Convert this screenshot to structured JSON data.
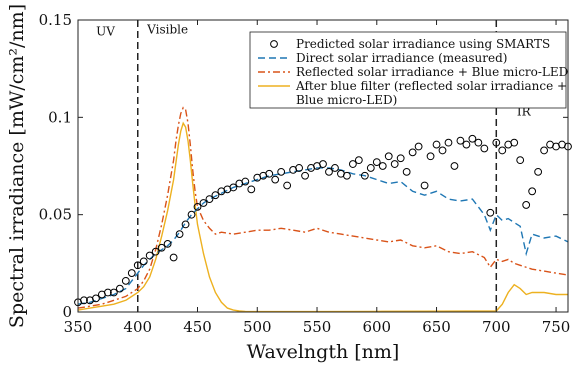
{
  "chart_data": {
    "type": "line",
    "xlabel": "Wavelngth [nm]",
    "ylabel": "Spectral irradiance [mW/cm²/nm]",
    "xlim": [
      350,
      760
    ],
    "ylim": [
      0,
      0.15
    ],
    "xticks": [
      350,
      400,
      450,
      500,
      550,
      600,
      650,
      700,
      750
    ],
    "xtick_labels": [
      "350",
      "400",
      "450",
      "500",
      "550",
      "600",
      "650",
      "700",
      "750"
    ],
    "yticks": [
      0,
      0.05,
      0.1,
      0.15
    ],
    "ytick_labels": [
      "0",
      "0.05",
      "0.1",
      "0.15"
    ],
    "grid": false,
    "legend_position": "top-right",
    "vlines": [
      400,
      700
    ],
    "region_labels": [
      {
        "text": "UV",
        "x": 373,
        "y": 0.142
      },
      {
        "text": "Visible",
        "x": 425,
        "y": 0.143
      },
      {
        "text": "IR",
        "x": 723,
        "y": 0.101
      }
    ],
    "series": [
      {
        "name": "Predicted solar irradiance using SMARTS",
        "style": "markers",
        "marker": "circle",
        "color": "#000000",
        "x": [
          350,
          355,
          360,
          365,
          370,
          375,
          380,
          385,
          390,
          395,
          400,
          405,
          410,
          415,
          420,
          425,
          430,
          435,
          440,
          445,
          450,
          455,
          460,
          465,
          470,
          475,
          480,
          485,
          490,
          495,
          500,
          505,
          510,
          515,
          520,
          525,
          530,
          535,
          540,
          545,
          550,
          555,
          560,
          565,
          570,
          575,
          580,
          585,
          590,
          595,
          600,
          605,
          610,
          615,
          620,
          625,
          630,
          635,
          640,
          645,
          650,
          655,
          660,
          665,
          670,
          675,
          680,
          685,
          690,
          695,
          700,
          705,
          710,
          715,
          720,
          725,
          730,
          735,
          740,
          745,
          750,
          755,
          760
        ],
        "y": [
          0.005,
          0.006,
          0.006,
          0.007,
          0.009,
          0.01,
          0.01,
          0.012,
          0.016,
          0.02,
          0.024,
          0.026,
          0.029,
          0.031,
          0.033,
          0.035,
          0.028,
          0.04,
          0.045,
          0.05,
          0.054,
          0.056,
          0.058,
          0.06,
          0.062,
          0.063,
          0.064,
          0.066,
          0.067,
          0.063,
          0.069,
          0.07,
          0.071,
          0.068,
          0.072,
          0.065,
          0.073,
          0.074,
          0.07,
          0.074,
          0.075,
          0.076,
          0.072,
          0.074,
          0.071,
          0.07,
          0.076,
          0.078,
          0.07,
          0.074,
          0.077,
          0.075,
          0.08,
          0.076,
          0.079,
          0.072,
          0.082,
          0.085,
          0.065,
          0.08,
          0.086,
          0.083,
          0.087,
          0.075,
          0.088,
          0.086,
          0.089,
          0.087,
          0.084,
          0.051,
          0.087,
          0.083,
          0.086,
          0.087,
          0.078,
          0.055,
          0.062,
          0.072,
          0.083,
          0.086,
          0.085,
          0.086,
          0.085
        ]
      },
      {
        "name": "Direct solar irradiance (measured)",
        "style": "dashed",
        "color": "#1f77b4",
        "x": [
          350,
          360,
          370,
          380,
          390,
          400,
          405,
          410,
          415,
          420,
          425,
          430,
          435,
          440,
          445,
          450,
          455,
          460,
          470,
          480,
          490,
          500,
          510,
          520,
          530,
          540,
          550,
          560,
          570,
          580,
          590,
          600,
          610,
          620,
          630,
          640,
          650,
          660,
          670,
          680,
          690,
          695,
          700,
          705,
          710,
          715,
          720,
          725,
          730,
          740,
          750,
          760
        ],
        "y": [
          0.004,
          0.005,
          0.007,
          0.009,
          0.012,
          0.02,
          0.024,
          0.027,
          0.03,
          0.032,
          0.034,
          0.037,
          0.041,
          0.046,
          0.05,
          0.053,
          0.056,
          0.058,
          0.061,
          0.064,
          0.066,
          0.068,
          0.07,
          0.071,
          0.072,
          0.073,
          0.074,
          0.074,
          0.073,
          0.071,
          0.07,
          0.068,
          0.066,
          0.067,
          0.062,
          0.06,
          0.062,
          0.058,
          0.057,
          0.058,
          0.05,
          0.042,
          0.05,
          0.047,
          0.048,
          0.046,
          0.044,
          0.03,
          0.04,
          0.038,
          0.039,
          0.036
        ]
      },
      {
        "name": "Reflected solar irradiance + Blue micro-LED",
        "style": "dashdot",
        "color": "#d95319",
        "x": [
          350,
          360,
          370,
          380,
          390,
          400,
          405,
          410,
          415,
          420,
          425,
          430,
          432,
          434,
          436,
          438,
          440,
          442,
          444,
          446,
          448,
          450,
          455,
          460,
          465,
          470,
          480,
          490,
          500,
          510,
          520,
          530,
          540,
          550,
          560,
          570,
          580,
          590,
          600,
          610,
          620,
          630,
          640,
          650,
          660,
          670,
          680,
          690,
          695,
          700,
          705,
          710,
          715,
          720,
          730,
          740,
          750,
          760
        ],
        "y": [
          0.002,
          0.003,
          0.004,
          0.006,
          0.008,
          0.012,
          0.016,
          0.022,
          0.032,
          0.045,
          0.06,
          0.078,
          0.088,
          0.096,
          0.102,
          0.105,
          0.104,
          0.097,
          0.086,
          0.073,
          0.062,
          0.054,
          0.047,
          0.043,
          0.04,
          0.041,
          0.04,
          0.041,
          0.042,
          0.042,
          0.043,
          0.042,
          0.041,
          0.043,
          0.041,
          0.04,
          0.039,
          0.038,
          0.037,
          0.036,
          0.037,
          0.034,
          0.033,
          0.034,
          0.031,
          0.03,
          0.031,
          0.028,
          0.023,
          0.027,
          0.026,
          0.027,
          0.025,
          0.024,
          0.022,
          0.021,
          0.02,
          0.019
        ]
      },
      {
        "name": "After blue filter (reflected solar irradiance + Blue micro-LED)",
        "style": "solid",
        "color": "#edb120",
        "x": [
          350,
          360,
          370,
          380,
          390,
          400,
          405,
          410,
          415,
          420,
          425,
          430,
          432,
          434,
          436,
          438,
          440,
          442,
          444,
          446,
          448,
          450,
          455,
          460,
          465,
          470,
          475,
          480,
          485,
          490,
          500,
          550,
          600,
          650,
          700,
          705,
          710,
          715,
          720,
          725,
          730,
          740,
          750,
          760
        ],
        "y": [
          0.001,
          0.002,
          0.003,
          0.004,
          0.006,
          0.01,
          0.013,
          0.018,
          0.027,
          0.039,
          0.052,
          0.068,
          0.077,
          0.086,
          0.093,
          0.097,
          0.095,
          0.088,
          0.078,
          0.066,
          0.055,
          0.045,
          0.03,
          0.018,
          0.01,
          0.005,
          0.002,
          0.001,
          0.0005,
          0.0003,
          0.0002,
          0.0002,
          0.0003,
          0.0004,
          0.0005,
          0.004,
          0.01,
          0.014,
          0.012,
          0.009,
          0.01,
          0.01,
          0.009,
          0.009
        ]
      }
    ]
  }
}
